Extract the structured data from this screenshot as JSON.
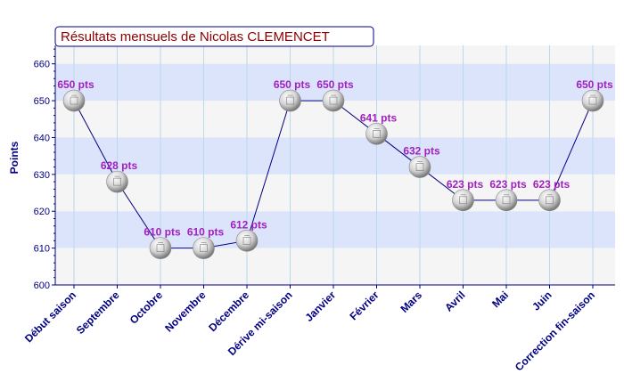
{
  "chart_data": {
    "type": "line",
    "title": "Résultats mensuels de Nicolas CLEMENCET",
    "xlabel": "",
    "ylabel": "Points",
    "ylim": [
      600,
      665
    ],
    "yticks": [
      600,
      610,
      620,
      630,
      640,
      650,
      660
    ],
    "grid": true,
    "categories": [
      "Début saison",
      "Septembre",
      "Octobre",
      "Novembre",
      "Décembre",
      "Dérive mi-saison",
      "Janvier",
      "Février",
      "Mars",
      "Avril",
      "Mai",
      "Juin",
      "Correction fin-saison"
    ],
    "values": [
      650,
      628,
      610,
      610,
      612,
      650,
      650,
      641,
      632,
      623,
      623,
      623,
      650
    ],
    "data_labels": [
      "650 pts",
      "628 pts",
      "610 pts",
      "610 pts",
      "612 pts",
      "650 pts",
      "650 pts",
      "641 pts",
      "632 pts",
      "623 pts",
      "623 pts",
      "623 pts",
      "650 pts"
    ]
  },
  "colors": {
    "band_light": "#f5f5f5",
    "band_blue": "#dce4fc",
    "grid": "#b8d8ec",
    "axis": "#000080",
    "line": "#000080",
    "title": "#8b0000",
    "label": "#a020c0"
  }
}
